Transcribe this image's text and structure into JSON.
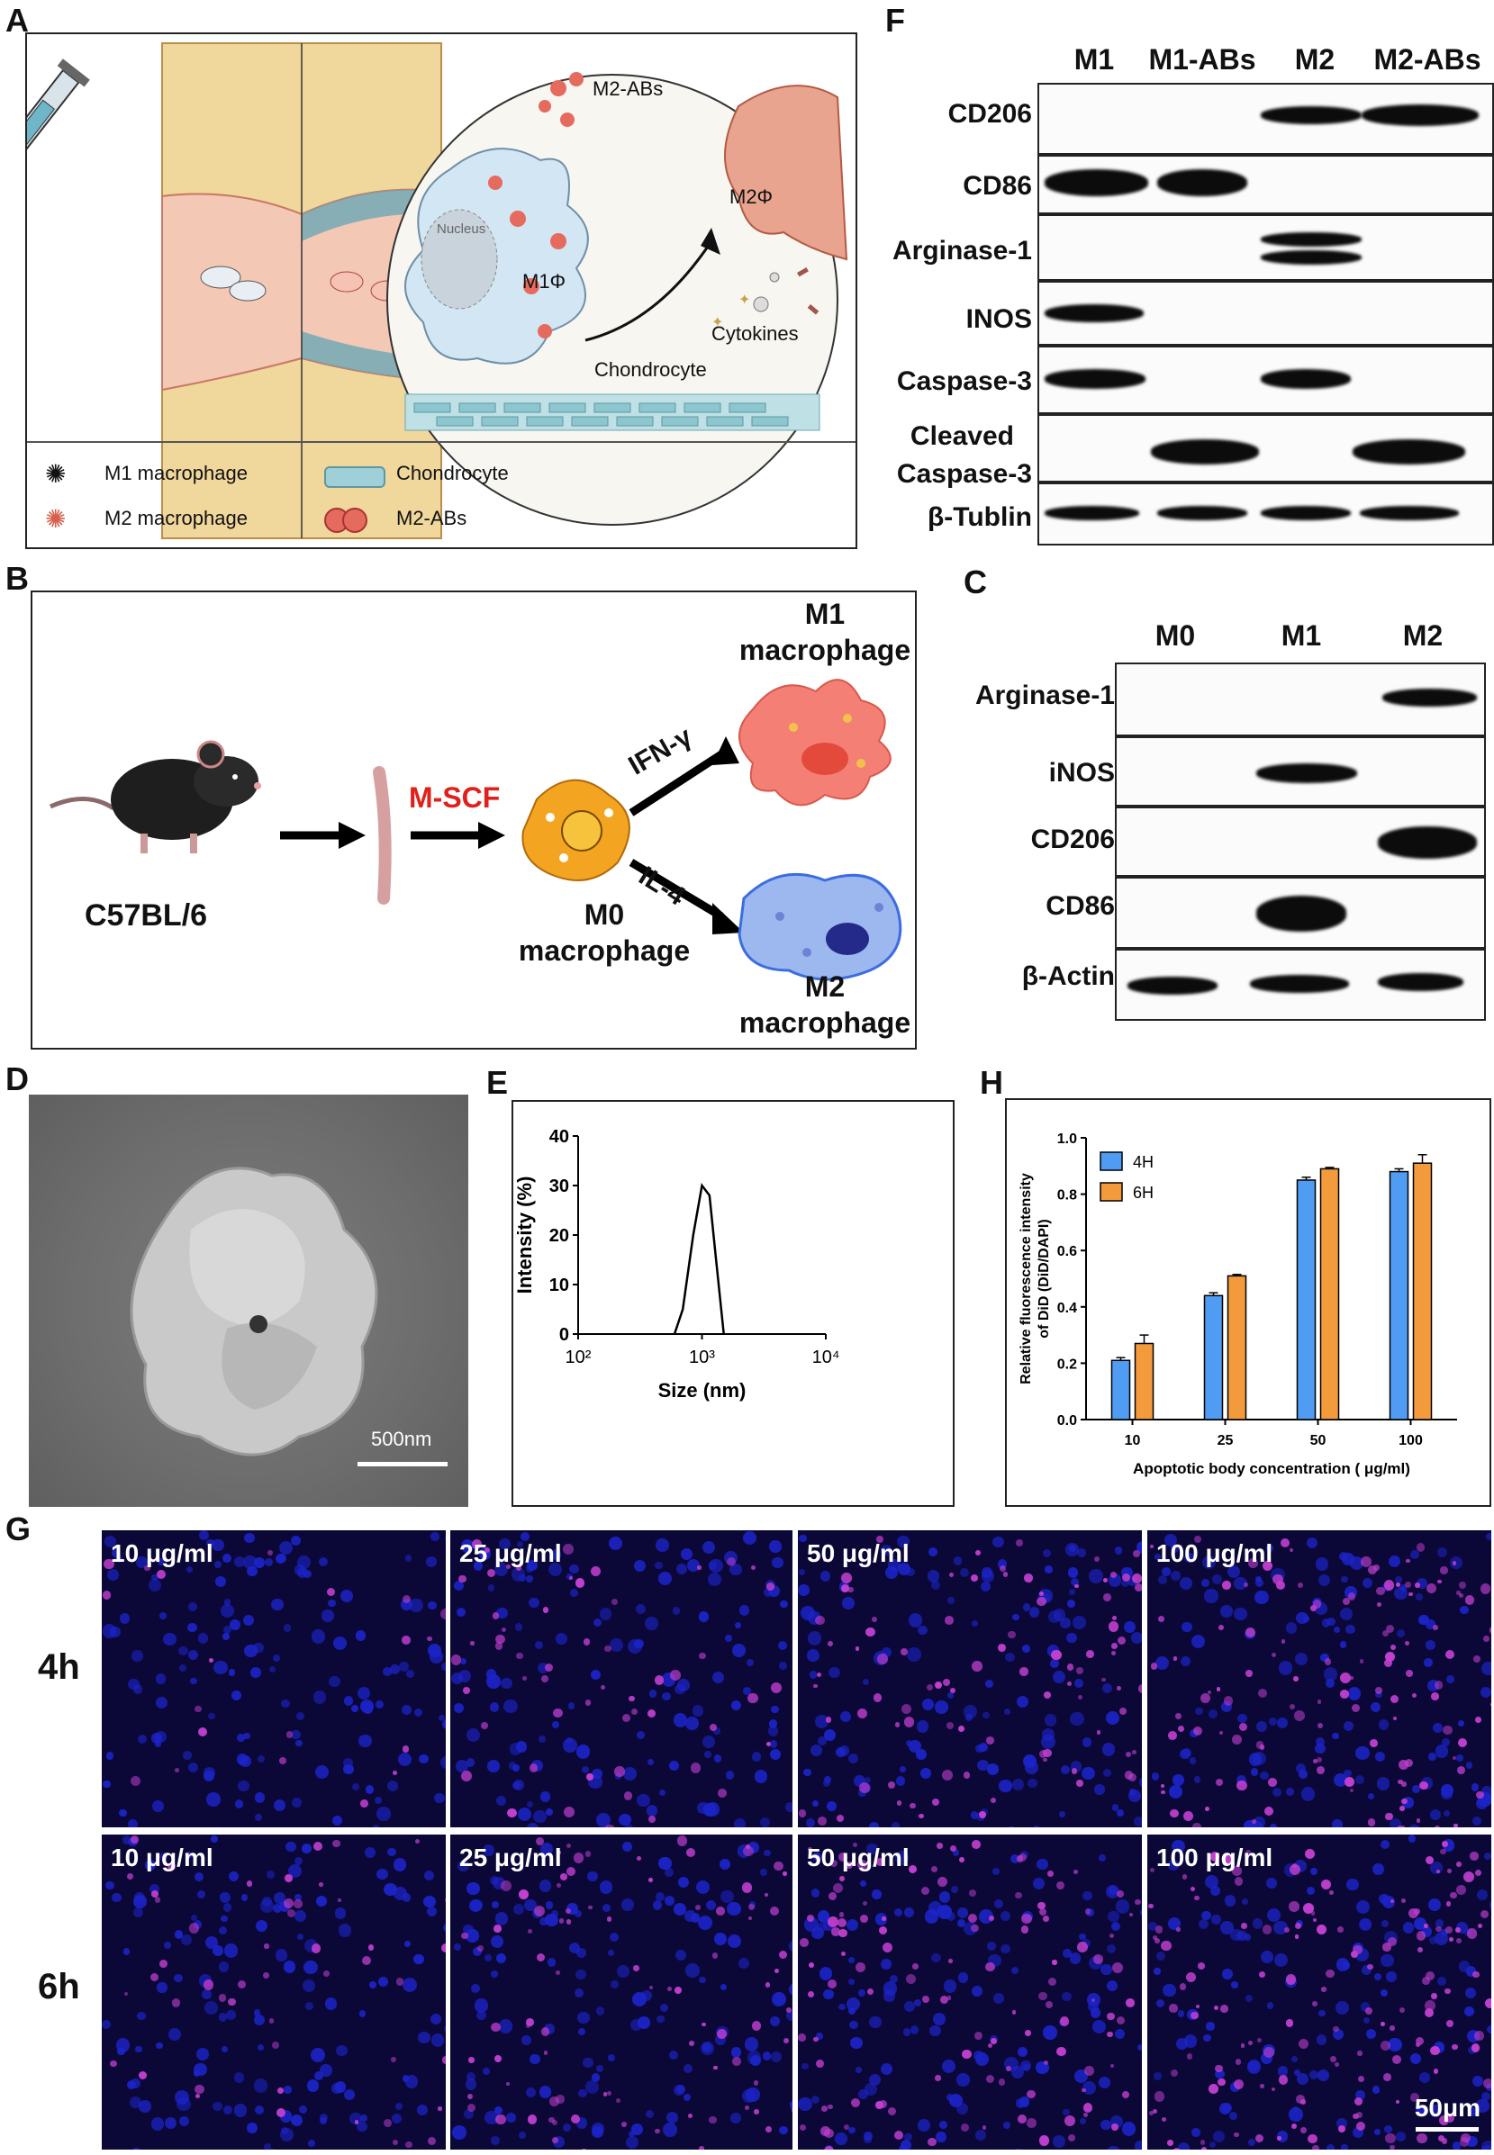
{
  "panels": {
    "A": {
      "letter": "A",
      "labels": {
        "m2abs": "M2-ABs",
        "nucleus": "Nucleus",
        "m1": "M1Φ",
        "m2": "M2Φ",
        "cytokines": "Cytokines",
        "chondrocyte": "Chondrocyte"
      },
      "legend": [
        {
          "label": "M1 macrophage",
          "icon": "m1-macrophage-icon"
        },
        {
          "label": "Chondrocyte",
          "icon": "chondrocyte-icon"
        },
        {
          "label": "M2 macrophage",
          "icon": "m2-macrophage-icon"
        },
        {
          "label": "M2-ABs",
          "icon": "m2-abs-icon"
        }
      ]
    },
    "B": {
      "letter": "B",
      "mouse": "C57BL/6",
      "mcsf": "M-SCF",
      "m0": [
        "M0",
        "macrophage"
      ],
      "ifn": "IFN-γ",
      "il4": "IL-4",
      "m1": [
        "M1",
        "macrophage"
      ],
      "m2": [
        "M2",
        "macrophage"
      ]
    },
    "C": {
      "letter": "C",
      "lanes": [
        "M0",
        "M1",
        "M2"
      ],
      "rows": [
        "Arginase-1",
        "iNOS",
        "CD206",
        "CD86",
        "β-Actin"
      ]
    },
    "D": {
      "letter": "D",
      "scale": "500nm"
    },
    "E": {
      "letter": "E"
    },
    "F": {
      "letter": "F",
      "lanes": [
        "M1",
        "M1-ABs",
        "M2",
        "M2-ABs"
      ],
      "rows": [
        "CD206",
        "CD86",
        "Arginase-1",
        "INOS",
        "Caspase-3",
        "Cleaved",
        "Caspase-3",
        "β-Tublin"
      ]
    },
    "G": {
      "letter": "G",
      "rows": [
        "4h",
        "6h"
      ],
      "concentrations": [
        "10 μg/ml",
        "25 μg/ml",
        "50 μg/ml",
        "100 μg/ml"
      ],
      "scale": "50μm"
    },
    "H": {
      "letter": "H"
    }
  },
  "chart_data": [
    {
      "id": "E",
      "type": "line",
      "xlabel": "Size (nm)",
      "ylabel": "Intensity (%)",
      "xscale": "log",
      "xlim": [
        100,
        10000
      ],
      "ylim": [
        0,
        40
      ],
      "xticks": [
        "10²",
        "10³",
        "10⁴"
      ],
      "yticks": [
        0,
        10,
        20,
        30,
        40
      ],
      "series": [
        {
          "x": [
            600,
            700,
            850,
            1000,
            1150,
            1300,
            1500
          ],
          "y": [
            0,
            5,
            20,
            30,
            28,
            15,
            0
          ]
        }
      ]
    },
    {
      "id": "H",
      "type": "bar",
      "xlabel": "Apoptotic body concentration ( μg/ml)",
      "ylabel": "Relative fluorescence intensity of DiD (DiD/DAPI)",
      "categories": [
        "10",
        "25",
        "50",
        "100"
      ],
      "ylim": [
        0,
        1.0
      ],
      "yticks": [
        "0.0",
        "0.2",
        "0.4",
        "0.6",
        "0.8",
        "1.0"
      ],
      "legend_position": "top-left",
      "colors": [
        "#4f9cf2",
        "#f39a3c"
      ],
      "series": [
        {
          "name": "4H",
          "values": [
            0.21,
            0.44,
            0.85,
            0.88
          ],
          "errors": [
            0.01,
            0.01,
            0.01,
            0.01
          ]
        },
        {
          "name": "6H",
          "values": [
            0.27,
            0.51,
            0.89,
            0.91
          ],
          "errors": [
            0.03,
            0.005,
            0.005,
            0.03
          ]
        }
      ]
    }
  ]
}
